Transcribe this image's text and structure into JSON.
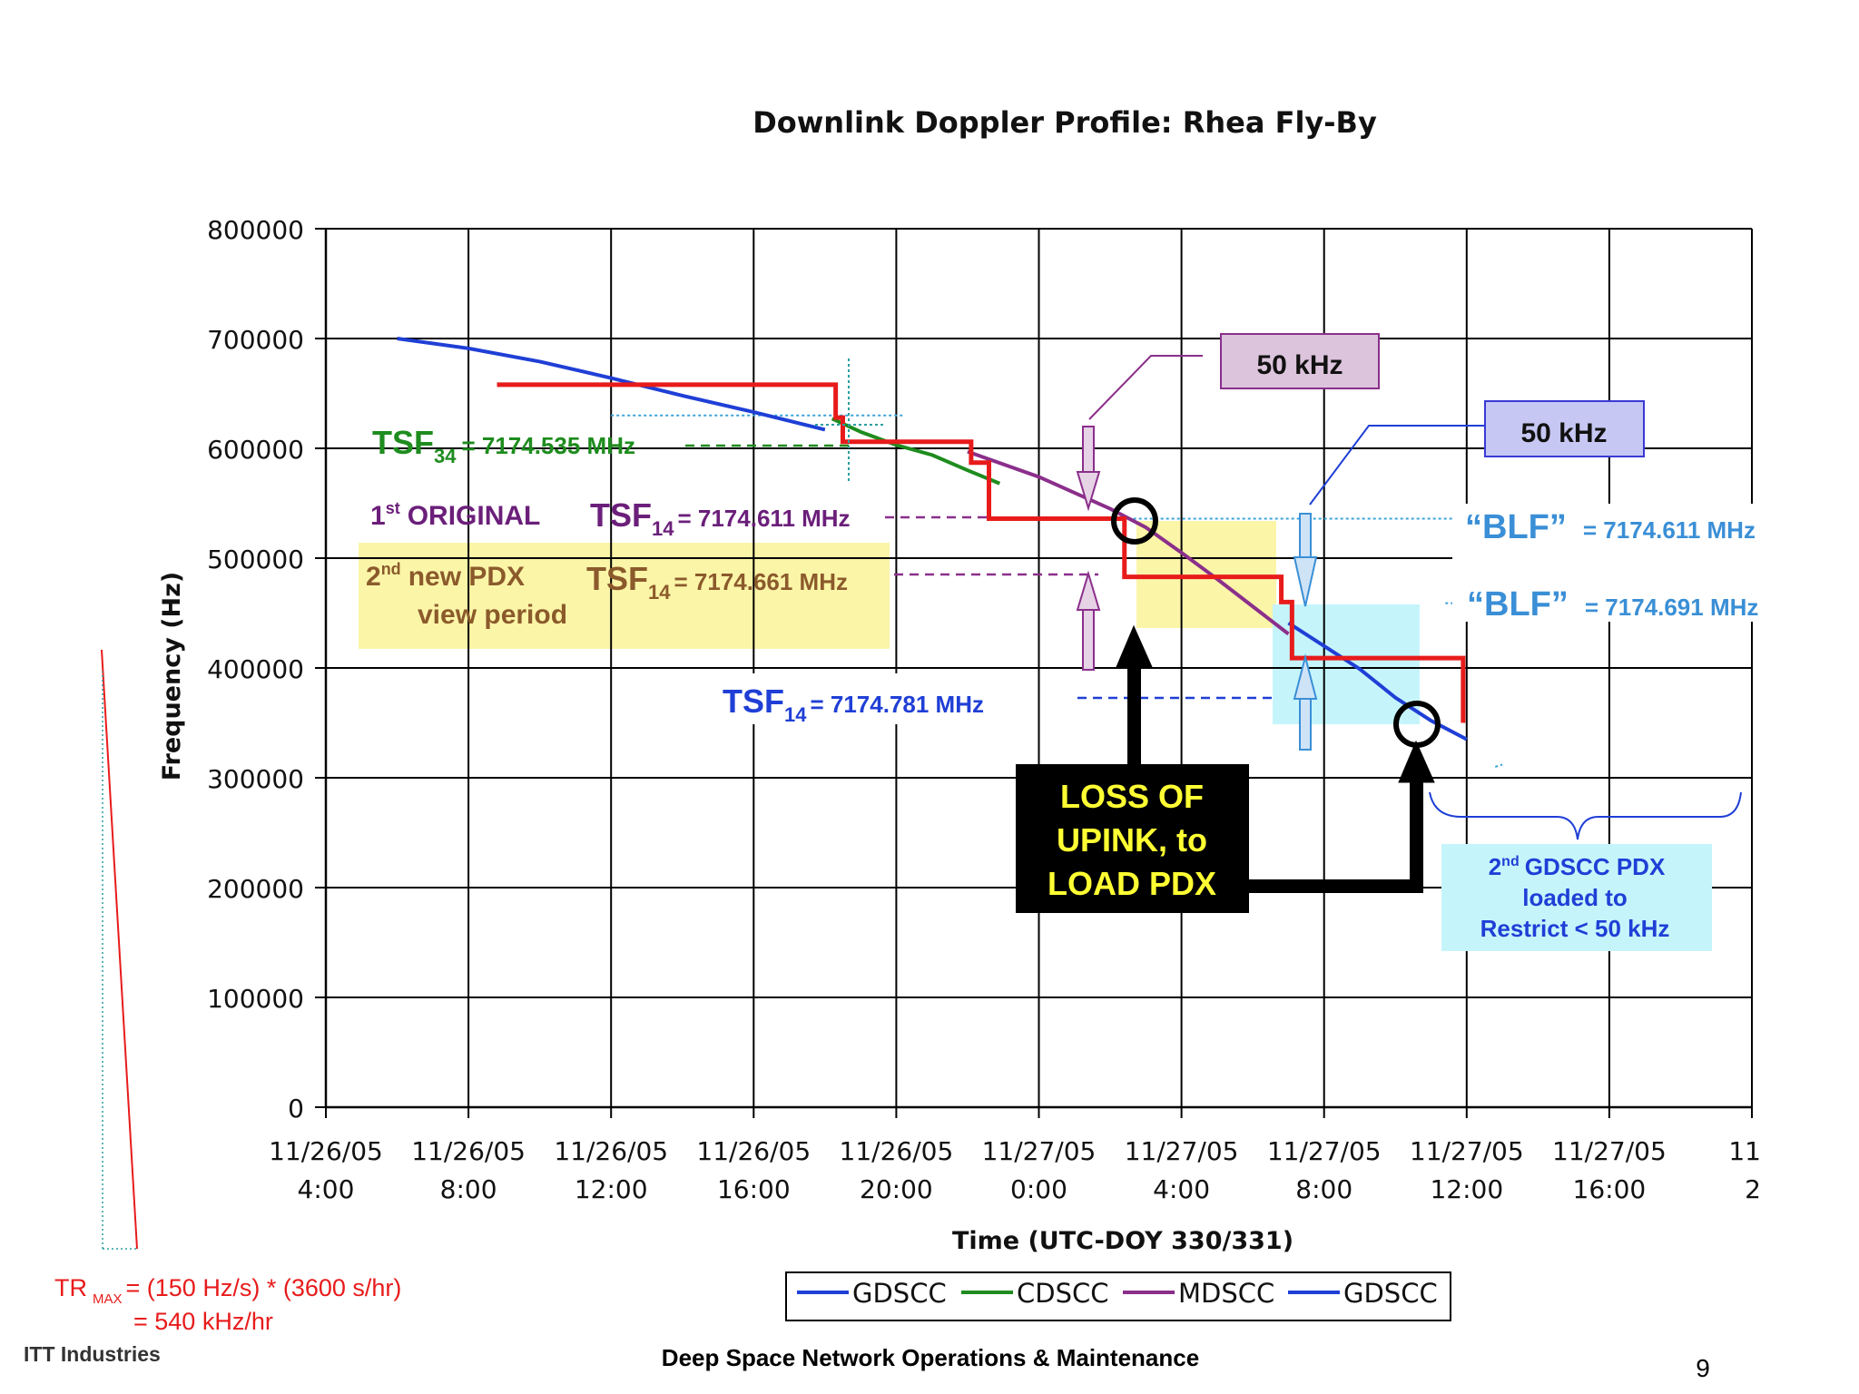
{
  "chart_data": {
    "type": "line",
    "title": "Downlink Doppler Profile: Rhea Fly-By",
    "xlabel": "Time (UTC-DOY 330/331)",
    "ylabel": "Frequency (Hz)",
    "x_unit": "hours from 11/26/05 0:00",
    "xlim": [
      4,
      44
    ],
    "ylim": [
      0,
      800000
    ],
    "y_ticks": [
      0,
      100000,
      200000,
      300000,
      400000,
      500000,
      600000,
      700000,
      800000
    ],
    "y_tick_labels": [
      "0",
      "100000",
      "200000",
      "300000",
      "400000",
      "500000",
      "600000",
      "700000",
      "800000"
    ],
    "x_ticks": [
      {
        "x": 4,
        "date": "11/26/05",
        "time": "4:00"
      },
      {
        "x": 8,
        "date": "11/26/05",
        "time": "8:00"
      },
      {
        "x": 12,
        "date": "11/26/05",
        "time": "12:00"
      },
      {
        "x": 16,
        "date": "11/26/05",
        "time": "16:00"
      },
      {
        "x": 20,
        "date": "11/26/05",
        "time": "20:00"
      },
      {
        "x": 24,
        "date": "11/27/05",
        "time": "0:00"
      },
      {
        "x": 28,
        "date": "11/27/05",
        "time": "4:00"
      },
      {
        "x": 32,
        "date": "11/27/05",
        "time": "8:00"
      },
      {
        "x": 36,
        "date": "11/27/05",
        "time": "12:00"
      },
      {
        "x": 40,
        "date": "11/27/05",
        "time": "16:00"
      },
      {
        "x": 44,
        "date": "11",
        "time": "2"
      }
    ],
    "grid": true,
    "legend_position": "bottom",
    "series": [
      {
        "name": "GDSCC",
        "color": "#1f3fd6",
        "points": [
          [
            6,
            700000
          ],
          [
            8,
            691000
          ],
          [
            10,
            679000
          ],
          [
            12,
            664000
          ],
          [
            14,
            648000
          ],
          [
            16,
            633000
          ],
          [
            18,
            617000
          ]
        ]
      },
      {
        "name": "CDSCC",
        "color": "#1e8c1e",
        "points": [
          [
            18.2,
            627000
          ],
          [
            19,
            615000
          ],
          [
            20,
            603000
          ],
          [
            21,
            594000
          ],
          [
            22,
            580000
          ],
          [
            22.9,
            568000
          ]
        ]
      },
      {
        "name": "MDSCC",
        "color": "#8b2f8b",
        "points": [
          [
            22,
            597000
          ],
          [
            24,
            574000
          ],
          [
            26,
            545000
          ],
          [
            27,
            528000
          ],
          [
            28,
            505000
          ],
          [
            29,
            481000
          ],
          [
            30,
            456000
          ],
          [
            31,
            431000
          ]
        ]
      },
      {
        "name": "GDSCC",
        "color": "#1f3fd6",
        "points": [
          [
            31,
            441000
          ],
          [
            32,
            420000
          ],
          [
            33,
            399000
          ],
          [
            34,
            373000
          ],
          [
            35,
            352000
          ],
          [
            36,
            335000
          ]
        ]
      }
    ],
    "tsf_step_profile": {
      "color": "#e81b1b",
      "points": [
        [
          8.8,
          658000
        ],
        [
          18.3,
          658000
        ],
        [
          18.3,
          628000
        ],
        [
          18.5,
          628000
        ],
        [
          18.5,
          606000
        ],
        [
          22.1,
          606000
        ],
        [
          22.1,
          587000
        ],
        [
          22.6,
          587000
        ],
        [
          22.6,
          536000
        ],
        [
          26.4,
          536000
        ],
        [
          26.4,
          483000
        ],
        [
          30.8,
          483000
        ],
        [
          30.8,
          460000
        ],
        [
          31.1,
          460000
        ],
        [
          31.1,
          409000
        ],
        [
          35.9,
          409000
        ],
        [
          35.9,
          350000
        ]
      ]
    },
    "reference_lines": [
      {
        "type": "dotted",
        "color": "#3aa3d8",
        "points": [
          [
            12,
            630000
          ],
          [
            20.2,
            630000
          ]
        ]
      },
      {
        "type": "dotted",
        "color": "#3aa3d8",
        "points": [
          [
            26.5,
            536000
          ],
          [
            39.1,
            536000
          ]
        ]
      },
      {
        "type": "dotted",
        "color": "#3aa3d8",
        "points": [
          [
            35.4,
            459000
          ],
          [
            39.2,
            459000
          ]
        ]
      },
      {
        "type": "dotted",
        "color": "#3aa3d8",
        "points": [
          [
            36.8,
            310000
          ],
          [
            37.0,
            312000
          ]
        ]
      }
    ],
    "annotations": {
      "tsf34": {
        "main": "TSF",
        "sub": "34",
        "value": "= 7174.535 MHz"
      },
      "original_prefix": "1",
      "original_sup": "st",
      "original_text": "ORIGINAL",
      "tsf14_a": {
        "main": "TSF",
        "sub": "14",
        "value": "= 7174.611 MHz"
      },
      "pdx_line1_prefix": "2",
      "pdx_line1_sup": "nd",
      "pdx_line1_text": "new PDX",
      "pdx_line2": "view period",
      "tsf14_b": {
        "main": "TSF",
        "sub": "14",
        "value": "= 7174.661 MHz"
      },
      "tsf14_c": {
        "main": "TSF",
        "sub": "14",
        "value": "= 7174.781 MHz"
      },
      "blf1": {
        "main": "“BLF”",
        "value": "= 7174.611 MHz"
      },
      "blf2": {
        "main": "“BLF”",
        "value": "= 7174.691 MHz"
      },
      "box_50khz_1": "50 kHz",
      "box_50khz_2": "50 kHz",
      "loss_line1": "LOSS OF",
      "loss_line2": "UPINK, to",
      "loss_line3": "LOAD PDX",
      "gdscc_line1_prefix": "2",
      "gdscc_line1_sup": "nd",
      "gdscc_line1_text": "GDSCC PDX",
      "gdscc_line2": "loaded to",
      "gdscc_line3": "Restrict < 50 kHz"
    }
  },
  "footer": {
    "tr_line1_prefix": "TR",
    "tr_line1_sub": "MAX",
    "tr_line1_rest": "= (150 Hz/s) * (3600 s/hr)",
    "tr_line2": "=  540 kHz/hr",
    "org": "ITT Industries",
    "center": "Deep Space Network Operations & Maintenance",
    "page": "9"
  },
  "colors": {
    "gdscc": "#1f3fd6",
    "cdscc": "#1e8c1e",
    "mdscc": "#8b2f8b",
    "tsf_red": "#e81b1b",
    "yellow_box": "#fbf5a8",
    "cyan_box": "#c5f5fb",
    "purple_box": "#dcc4dc",
    "blue_box": "#c6c7f3",
    "blf_blue": "#3a8fd6"
  }
}
